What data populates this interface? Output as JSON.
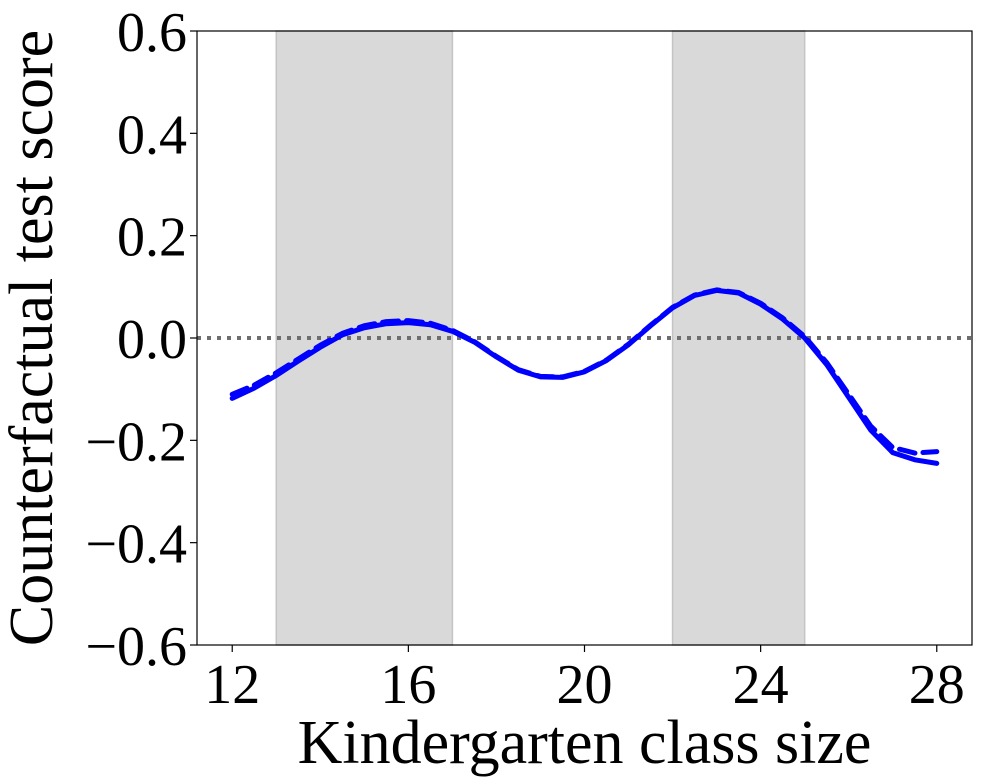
{
  "chart_data": {
    "type": "line",
    "title": "",
    "xlabel": "Kindergarten class size",
    "ylabel": "Counterfactual test score",
    "xlim": [
      11.2,
      28.8
    ],
    "ylim": [
      -0.6,
      0.6
    ],
    "x_ticks": [
      12,
      16,
      20,
      24,
      28
    ],
    "x_tick_labels": [
      "12",
      "16",
      "20",
      "24",
      "28"
    ],
    "y_ticks": [
      -0.6,
      -0.4,
      -0.2,
      0.0,
      0.2,
      0.4,
      0.6
    ],
    "y_tick_labels": [
      "−0.6",
      "−0.4",
      "−0.2",
      "0.0",
      "0.2",
      "0.4",
      "0.6"
    ],
    "grid": false,
    "shaded_regions": [
      {
        "x_start": 13,
        "x_end": 17,
        "color": "#d9d9d9"
      },
      {
        "x_start": 22,
        "x_end": 25,
        "color": "#d9d9d9"
      }
    ],
    "reference_line": {
      "y": 0.0,
      "style": "dotted",
      "color": "#6e6e6e"
    },
    "series": [
      {
        "style": "solid",
        "color": "#0000ff",
        "x": [
          12,
          12.5,
          13,
          13.5,
          14,
          14.5,
          15,
          15.5,
          16,
          16.5,
          17,
          17.5,
          18,
          18.5,
          19,
          19.5,
          20,
          20.5,
          21,
          21.5,
          22,
          22.5,
          23,
          23.5,
          24,
          24.5,
          25,
          25.5,
          26,
          26.5,
          27,
          27.5,
          28
        ],
        "values": [
          -0.118,
          -0.098,
          -0.073,
          -0.045,
          -0.018,
          0.006,
          0.02,
          0.028,
          0.03,
          0.026,
          0.013,
          -0.008,
          -0.037,
          -0.063,
          -0.076,
          -0.077,
          -0.066,
          -0.044,
          -0.013,
          0.024,
          0.059,
          0.083,
          0.093,
          0.088,
          0.066,
          0.037,
          0.0,
          -0.052,
          -0.116,
          -0.18,
          -0.224,
          -0.238,
          -0.245
        ]
      },
      {
        "style": "dashed",
        "color": "#0000ff",
        "x": [
          12,
          12.5,
          13,
          13.5,
          14,
          14.5,
          15,
          15.5,
          16,
          16.5,
          17,
          17.5,
          18,
          18.5,
          19,
          19.5,
          20,
          20.5,
          21,
          21.5,
          22,
          22.5,
          23,
          23.5,
          24,
          24.5,
          25,
          25.5,
          26,
          26.5,
          27,
          27.5,
          28
        ],
        "values": [
          -0.11,
          -0.092,
          -0.068,
          -0.041,
          -0.014,
          0.009,
          0.024,
          0.032,
          0.034,
          0.029,
          0.015,
          -0.007,
          -0.036,
          -0.062,
          -0.075,
          -0.076,
          -0.065,
          -0.043,
          -0.012,
          0.025,
          0.06,
          0.084,
          0.094,
          0.089,
          0.068,
          0.039,
          0.003,
          -0.048,
          -0.11,
          -0.172,
          -0.214,
          -0.225,
          -0.222
        ]
      }
    ]
  }
}
